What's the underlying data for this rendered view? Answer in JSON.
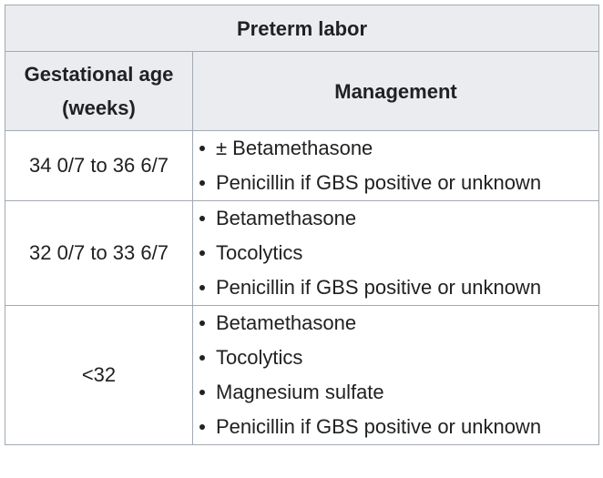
{
  "table": {
    "title": "Preterm labor",
    "headers": {
      "age_line1": "Gestational age",
      "age_line2": "(weeks)",
      "management": "Management"
    },
    "rows": [
      {
        "age": "34 0/7 to 36 6/7",
        "items": [
          "± Betamethasone",
          "Penicillin if GBS positive or unknown"
        ]
      },
      {
        "age": "32 0/7 to 33 6/7",
        "items": [
          "Betamethasone",
          "Tocolytics",
          "Penicillin if GBS positive or unknown"
        ]
      },
      {
        "age": "<32",
        "items": [
          "Betamethasone",
          "Tocolytics",
          "Magnesium sulfate",
          "Penicillin if GBS positive or unknown"
        ]
      }
    ]
  }
}
